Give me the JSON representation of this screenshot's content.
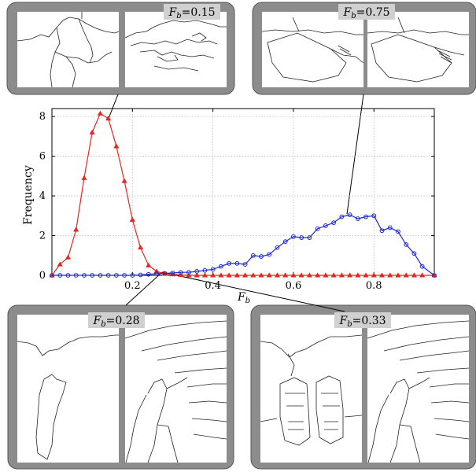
{
  "insets": [
    {
      "label": "F",
      "sub": "b",
      "value": "=0.15"
    },
    {
      "label": "F",
      "sub": "b",
      "value": "=0.75"
    },
    {
      "label": "F",
      "sub": "b",
      "value": "=0.28"
    },
    {
      "label": "F",
      "sub": "b",
      "value": "=0.33"
    }
  ],
  "colors": {
    "red_series": "#e8261c",
    "blue_series": "#1c28d6",
    "panel_fill": "#8c8c8c",
    "panel_title_fill": "#d0d0d0",
    "grid": "#bbbbbb"
  },
  "chart_data": {
    "type": "line",
    "xlabel_main": "F",
    "xlabel_sub": "b",
    "ylabel": "Frequency",
    "xlim": [
      0,
      0.95
    ],
    "ylim": [
      0,
      8.4
    ],
    "xticks": [
      0.2,
      0.4,
      0.6,
      0.8
    ],
    "xtick_labels": [
      "0.2",
      "0.4",
      "0.6",
      "0.8"
    ],
    "yticks": [
      0,
      2,
      4,
      6,
      8
    ],
    "ytick_labels": [
      "0",
      "2",
      "4",
      "6",
      "8"
    ],
    "grid": true,
    "series": [
      {
        "marker": "triangle",
        "color": "#e8261c",
        "x": [
          0.0,
          0.02,
          0.04,
          0.06,
          0.08,
          0.1,
          0.12,
          0.14,
          0.16,
          0.18,
          0.2,
          0.22,
          0.24,
          0.26,
          0.28,
          0.3,
          0.32,
          0.34,
          0.36,
          0.38,
          0.4,
          0.42,
          0.44,
          0.46,
          0.48,
          0.5,
          0.52,
          0.54,
          0.56,
          0.58,
          0.6,
          0.62,
          0.64,
          0.66,
          0.68,
          0.7,
          0.72,
          0.74,
          0.76,
          0.78,
          0.8,
          0.82,
          0.84,
          0.86,
          0.88,
          0.9,
          0.92,
          0.95
        ],
        "y": [
          0.0,
          0.55,
          0.9,
          2.3,
          4.9,
          7.2,
          8.15,
          7.9,
          6.5,
          4.75,
          2.8,
          1.4,
          0.5,
          0.2,
          0.08,
          0.05,
          0.02,
          0,
          0,
          0,
          0,
          0,
          0,
          0,
          0,
          0,
          0,
          0,
          0,
          0,
          0,
          0,
          0,
          0,
          0,
          0,
          0,
          0,
          0,
          0,
          0,
          0,
          0,
          0,
          0,
          0,
          0,
          0
        ]
      },
      {
        "marker": "circle",
        "color": "#1c28d6",
        "x": [
          0.0,
          0.02,
          0.04,
          0.06,
          0.08,
          0.1,
          0.12,
          0.14,
          0.16,
          0.18,
          0.2,
          0.22,
          0.24,
          0.26,
          0.28,
          0.3,
          0.32,
          0.34,
          0.36,
          0.38,
          0.4,
          0.42,
          0.44,
          0.46,
          0.48,
          0.5,
          0.52,
          0.54,
          0.56,
          0.58,
          0.6,
          0.62,
          0.64,
          0.66,
          0.68,
          0.7,
          0.72,
          0.74,
          0.76,
          0.78,
          0.8,
          0.82,
          0.84,
          0.86,
          0.88,
          0.9,
          0.92,
          0.95
        ],
        "y": [
          0,
          0,
          0,
          0,
          0,
          0,
          0,
          0,
          0,
          0,
          0,
          0.02,
          0.05,
          0.08,
          0.1,
          0.12,
          0.15,
          0.15,
          0.2,
          0.25,
          0.3,
          0.45,
          0.6,
          0.6,
          0.55,
          1.0,
          0.95,
          1.05,
          1.4,
          1.7,
          1.95,
          1.9,
          1.9,
          2.35,
          2.5,
          2.65,
          2.95,
          3.05,
          2.85,
          2.95,
          3.0,
          2.25,
          2.4,
          2.2,
          1.55,
          1.1,
          0.45,
          0
        ]
      }
    ]
  }
}
